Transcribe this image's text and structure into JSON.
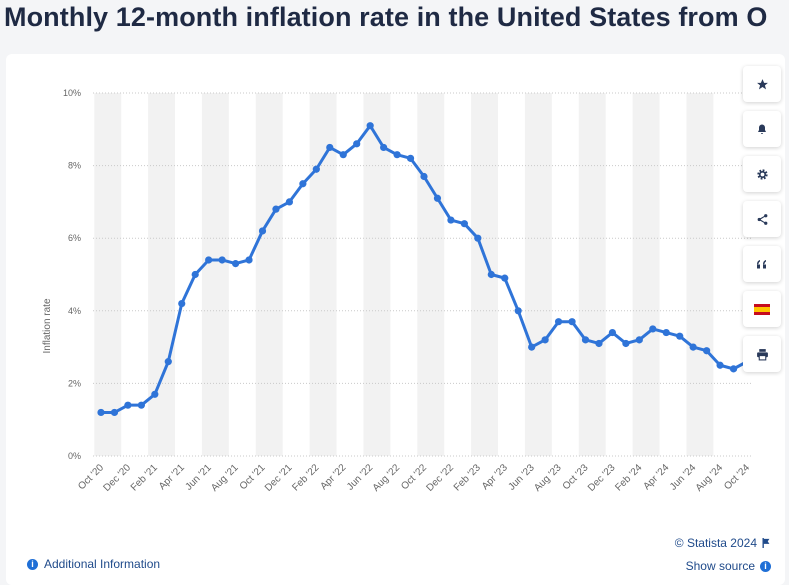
{
  "title": "Monthly 12-month inflation rate in the United States from O",
  "chart_data": {
    "type": "line",
    "ylabel": "Inflation rate",
    "xlabel": "",
    "ylim": [
      0,
      10
    ],
    "yticks": [
      "0%",
      "2%",
      "4%",
      "6%",
      "8%",
      "10%"
    ],
    "grid": true,
    "x": [
      "Oct '20",
      "Nov '20",
      "Dec '20",
      "Jan '21",
      "Feb '21",
      "Mar '21",
      "Apr '21",
      "May '21",
      "Jun '21",
      "Jul '21",
      "Aug '21",
      "Sep '21",
      "Oct '21",
      "Nov '21",
      "Dec '21",
      "Jan '22",
      "Feb '22",
      "Mar '22",
      "Apr '22",
      "May '22",
      "Jun '22",
      "Jul '22",
      "Aug '22",
      "Sep '22",
      "Oct '22",
      "Nov '22",
      "Dec '22",
      "Jan '23",
      "Feb '23",
      "Mar '23",
      "Apr '23",
      "May '23",
      "Jun '23",
      "Jul '23",
      "Aug '23",
      "Sep '23",
      "Oct '23",
      "Nov '23",
      "Dec '23",
      "Jan '24",
      "Feb '24",
      "Mar '24",
      "Apr '24",
      "May '24",
      "Jun '24",
      "Jul '24",
      "Aug '24",
      "Sep '24",
      "Oct '24"
    ],
    "series": [
      {
        "values": [
          1.2,
          1.2,
          1.4,
          1.4,
          1.7,
          2.6,
          4.2,
          5.0,
          5.4,
          5.4,
          5.3,
          5.4,
          6.2,
          6.8,
          7.0,
          7.5,
          7.9,
          8.5,
          8.3,
          8.6,
          9.1,
          8.5,
          8.3,
          8.2,
          7.7,
          7.1,
          6.5,
          6.4,
          6.0,
          5.0,
          4.9,
          4.0,
          3.0,
          3.2,
          3.7,
          3.7,
          3.2,
          3.1,
          3.4,
          3.1,
          3.2,
          3.5,
          3.4,
          3.3,
          3.0,
          2.9,
          2.5,
          2.4,
          2.6
        ],
        "color": "#2f74d8"
      }
    ],
    "tick_labels_shown": [
      "Oct '20",
      "Dec '20",
      "Feb '21",
      "Apr '21",
      "Jun '21",
      "Aug '21",
      "Oct '21",
      "Dec '21",
      "Feb '22",
      "Apr '22",
      "Jun '22",
      "Aug '22",
      "Oct '22",
      "Dec '22",
      "Feb '23",
      "Apr '23",
      "Jun '23",
      "Aug '23",
      "Oct '23",
      "Dec '23",
      "Feb '24",
      "Apr '24",
      "Jun '24",
      "Aug '24",
      "Oct '24"
    ]
  },
  "toolbar": {
    "items": [
      "star-icon",
      "bell-icon",
      "gear-icon",
      "share-icon",
      "quote-icon",
      "spain-flag-icon",
      "print-icon"
    ]
  },
  "footer": {
    "credit": "© Statista 2024",
    "show_source": "Show source",
    "additional_info": "Additional Information"
  },
  "colors": {
    "line": "#2f74d8",
    "band": "#f2f2f2",
    "title": "#1f2a44",
    "link": "#1f4a8a"
  }
}
